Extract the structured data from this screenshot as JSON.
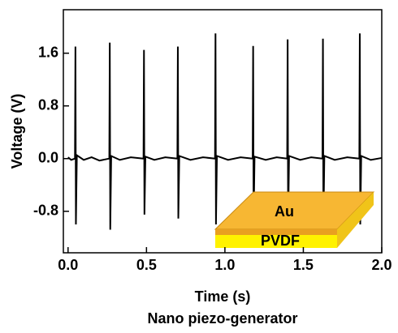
{
  "chart_data": {
    "type": "line",
    "title": "Nano piezo-generator",
    "xlabel": "Time (s)",
    "ylabel": "Voltage (V)",
    "x": [
      0.0,
      0.02,
      0.044,
      0.047,
      0.05,
      0.056,
      0.1,
      0.15,
      0.2,
      0.263,
      0.266,
      0.269,
      0.275,
      0.33,
      0.4,
      0.481,
      0.484,
      0.487,
      0.493,
      0.55,
      0.62,
      0.697,
      0.7,
      0.703,
      0.709,
      0.78,
      0.86,
      0.937,
      0.94,
      0.943,
      0.949,
      1.02,
      1.1,
      1.177,
      1.18,
      1.183,
      1.189,
      1.26,
      1.33,
      1.397,
      1.4,
      1.403,
      1.409,
      1.48,
      1.55,
      1.622,
      1.625,
      1.628,
      1.634,
      1.7,
      1.78,
      1.857,
      1.86,
      1.863,
      1.869,
      1.93,
      2.0
    ],
    "values": [
      0.02,
      -0.02,
      0.0,
      1.7,
      -1.0,
      0.05,
      -0.02,
      0.02,
      -0.03,
      0.0,
      1.76,
      -1.08,
      0.04,
      -0.02,
      0.02,
      0.0,
      1.65,
      -0.85,
      0.03,
      -0.02,
      0.02,
      0.0,
      1.7,
      -0.91,
      0.04,
      -0.02,
      0.02,
      0.0,
      1.9,
      -1.0,
      0.04,
      -0.02,
      0.02,
      0.0,
      1.71,
      -1.0,
      0.03,
      -0.02,
      0.02,
      0.0,
      1.81,
      -1.0,
      0.04,
      -0.02,
      0.02,
      0.0,
      1.82,
      -1.0,
      0.04,
      -0.02,
      0.02,
      0.0,
      1.9,
      -1.0,
      0.04,
      -0.02,
      0.01
    ],
    "color": "#000000",
    "xlim": [
      -0.03,
      2.0
    ],
    "xticks": [
      {
        "value": 0,
        "label": "0.0"
      },
      0.5,
      {
        "value": 1,
        "label": "1.0"
      },
      1.5,
      {
        "value": 2,
        "label": "2.0"
      }
    ],
    "ylim": [
      -1.43,
      2.26
    ],
    "yticks": [
      -0.8,
      {
        "value": 0,
        "label": "0.0"
      },
      0.8,
      1.6
    ],
    "inset": {
      "top_layer": "Au",
      "bottom_layer": "PVDF"
    }
  }
}
